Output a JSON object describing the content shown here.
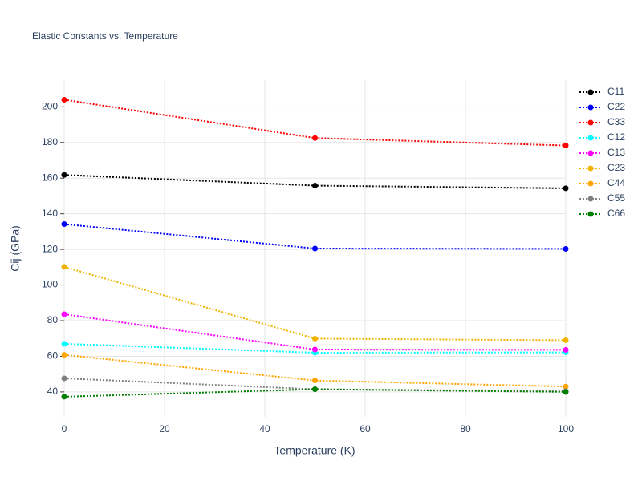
{
  "chart_data": {
    "type": "line",
    "title": "Elastic Constants vs. Temperature",
    "x_label": "Temperature (K)",
    "y_label": "Cij (GPa)",
    "x": [
      0,
      50,
      100
    ],
    "series": [
      {
        "name": "C11",
        "color": "#000000",
        "values": [
          161.8,
          155.8,
          154.3
        ]
      },
      {
        "name": "C22",
        "color": "#0000ff",
        "values": [
          134.2,
          120.5,
          120.3
        ]
      },
      {
        "name": "C33",
        "color": "#ff0000",
        "values": [
          204.0,
          182.5,
          178.3
        ]
      },
      {
        "name": "C12",
        "color": "#00ffff",
        "values": [
          67.0,
          62.0,
          62.2
        ]
      },
      {
        "name": "C13",
        "color": "#ff00ff",
        "values": [
          83.6,
          63.8,
          63.6
        ]
      },
      {
        "name": "C23",
        "color": "#f0b400",
        "values": [
          110.2,
          69.9,
          69.0
        ]
      },
      {
        "name": "C44",
        "color": "#ffa500",
        "values": [
          60.8,
          46.4,
          43.0
        ]
      },
      {
        "name": "C55",
        "color": "#808080",
        "values": [
          47.6,
          41.5,
          40.4
        ]
      },
      {
        "name": "C66",
        "color": "#008000",
        "values": [
          37.3,
          41.5,
          40.0
        ]
      }
    ],
    "xlim": [
      0,
      100
    ],
    "xticks": [
      0,
      20,
      40,
      60,
      80,
      100
    ],
    "ylim": [
      26,
      215
    ],
    "yticks": [
      40,
      60,
      80,
      100,
      120,
      140,
      160,
      180,
      200
    ],
    "grid": true,
    "legend": "right"
  }
}
